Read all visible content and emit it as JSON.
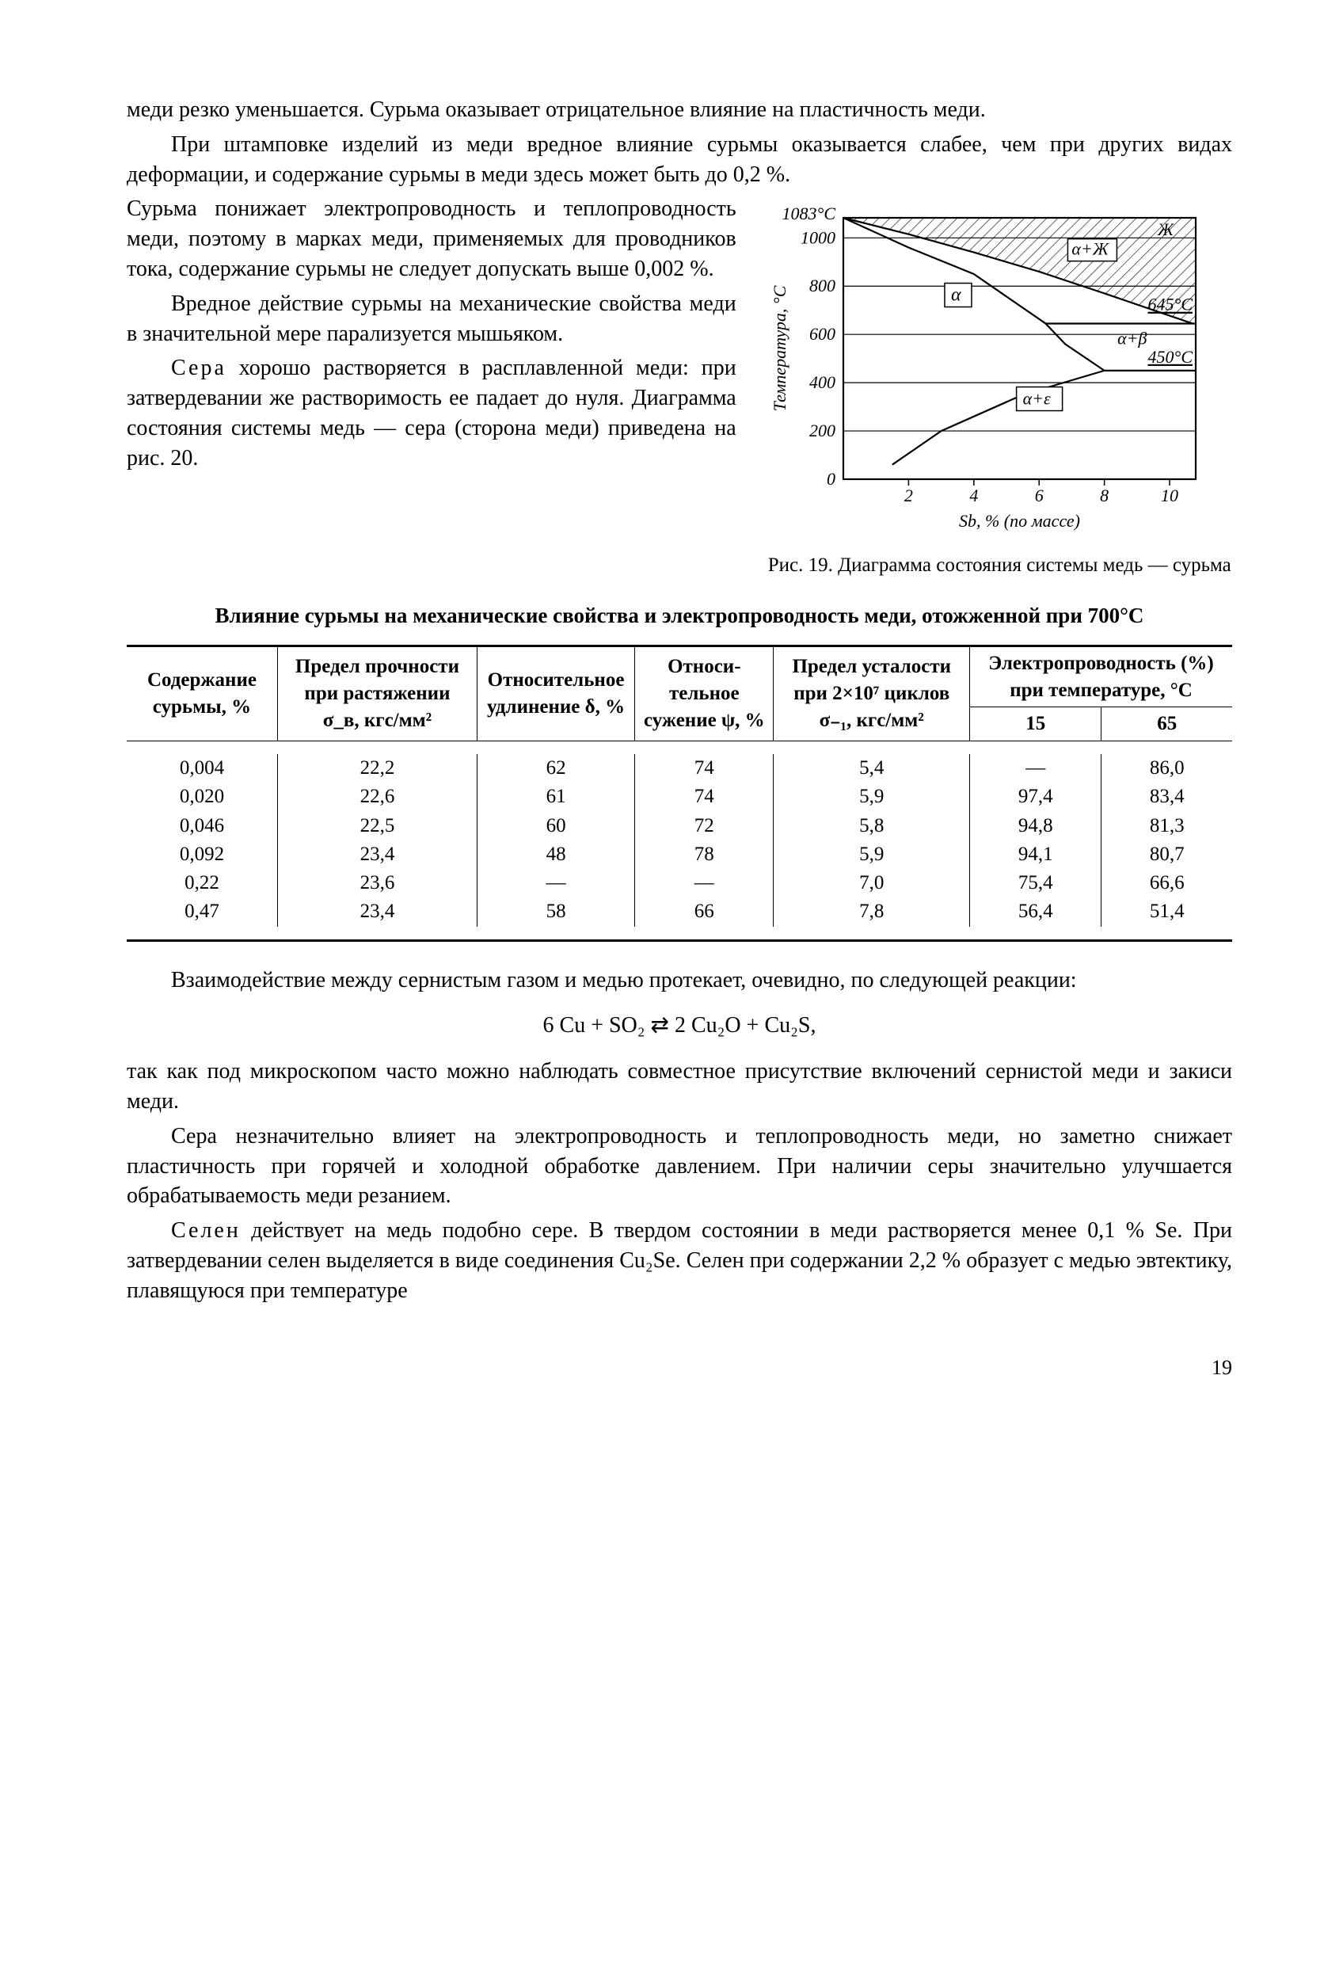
{
  "paragraphs": {
    "p1": "меди резко уменьшается. Сурьма оказывает отрицательное влия­ние на пластичность меди.",
    "p2": "При штамповке изделий из меди вредное влияние сурьмы ока­зывается слабее, чем при других видах деформации, и содержание сурьмы в меди здесь может быть до 0,2 %.",
    "p3": "Сурьма понижает электропроводность и теплопроводность меди, поэтому в мар­ках меди, применяемых для проводников тока, содержание сурьмы не следует до­пускать выше 0,002 %.",
    "p4": "Вредное действие сурьмы на механи­ческие свойства меди в значительной ме­ре парализуется мышьяком.",
    "p5a": "Сера",
    "p5b": " хорошо растворяется в рас­плавленной меди: при затвердевании же растворимость ее падает до нуля. Диа­грамма состояния системы медь — сера (сторона меди) приведена на рис. 20.",
    "p6": "Взаимодействие между сернистым газом и медью протекает, очевидно, по следующей реакции:",
    "eq": "6 Cu + SO₂ ⇄ 2 Cu₂O + Cu₂S,",
    "p7": "так как под микроскопом часто можно наблюдать совместное присутствие включений сернистой меди и закиси меди.",
    "p8": "Сера незначительно влияет на электропроводность и тепло­проводность меди, но заметно снижает пластичность при горячей и холодной обработке давлением. При наличии серы значительно улучшается обрабатываемость меди резанием.",
    "p9a": "Селен",
    "p9b": " действует на медь подобно сере. В твердом состоянии в меди растворяется менее 0,1 % Se. При затвердевании селен вы­деляется в виде соединения Cu₂Se. Селен при содержании 2,2 % образует с медью эвтектику, плавящуюся при температуре",
    "pgnum": "19"
  },
  "figure": {
    "caption": "Рис. 19. Диаграмма состоя­ния системы медь — сурьма",
    "y_label": "Температура, °C",
    "x_label": "Sb, % (по массе)",
    "y_ticks": [
      "0",
      "200",
      "400",
      "600",
      "800",
      "1000"
    ],
    "y_top_label": "1083°C",
    "x_ticks": [
      "2",
      "4",
      "6",
      "8",
      "10"
    ],
    "region_labels": {
      "liquid": "Ж",
      "alpha_liquid": "α+Ж",
      "alpha": "α",
      "alpha_beta": "α+β",
      "alpha_eps": "α+ε"
    },
    "temp_labels": {
      "t645": "645°C",
      "t450": "450°C"
    },
    "liquidus_pts": [
      [
        0,
        1083
      ],
      [
        2,
        1015
      ],
      [
        4,
        940
      ],
      [
        6,
        860
      ],
      [
        8,
        770
      ],
      [
        10.7,
        645
      ]
    ],
    "solidus_pts": [
      [
        0,
        1083
      ],
      [
        2,
        960
      ],
      [
        4,
        850
      ],
      [
        6.2,
        645
      ]
    ],
    "solvus_pts": [
      [
        6.2,
        645
      ],
      [
        6.8,
        560
      ],
      [
        8.0,
        450
      ]
    ],
    "retro_pts": [
      [
        8.0,
        450
      ],
      [
        5.5,
        350
      ],
      [
        3.0,
        200
      ],
      [
        1.5,
        60
      ]
    ],
    "iso645": 645,
    "iso450": 450,
    "xmax": 10.8,
    "ymax": 1083,
    "axis_color": "#000",
    "grid_color": "#000",
    "line_width": 2.2,
    "font_size": 22
  },
  "table": {
    "title": "Влияние сурьмы на механические свойства и электропроводность меди, отожженной при 700°C",
    "headers": {
      "c1": "Содержание сурьмы, %",
      "c2": "Предел прочности при растяже­нии σ_в, кгс/мм²",
      "c3": "Относи­тельное удлинение δ, %",
      "c4": "Относи­тельное сужение ψ, %",
      "c5": "Предел усталости при 2×10⁷ циклов σ₋₁, кгс/мм²",
      "c6": "Электропроводность (%) при температуре, °C",
      "c6a": "15",
      "c6b": "65"
    },
    "rows": [
      [
        "0,004",
        "22,2",
        "62",
        "74",
        "5,4",
        "—",
        "86,0"
      ],
      [
        "0,020",
        "22,6",
        "61",
        "74",
        "5,9",
        "97,4",
        "83,4"
      ],
      [
        "0,046",
        "22,5",
        "60",
        "72",
        "5,8",
        "94,8",
        "81,3"
      ],
      [
        "0,092",
        "23,4",
        "48",
        "78",
        "5,9",
        "94,1",
        "80,7"
      ],
      [
        "0,22",
        "23,6",
        "—",
        "—",
        "7,0",
        "75,4",
        "66,6"
      ],
      [
        "0,47",
        "23,4",
        "58",
        "66",
        "7,8",
        "56,4",
        "51,4"
      ]
    ]
  }
}
